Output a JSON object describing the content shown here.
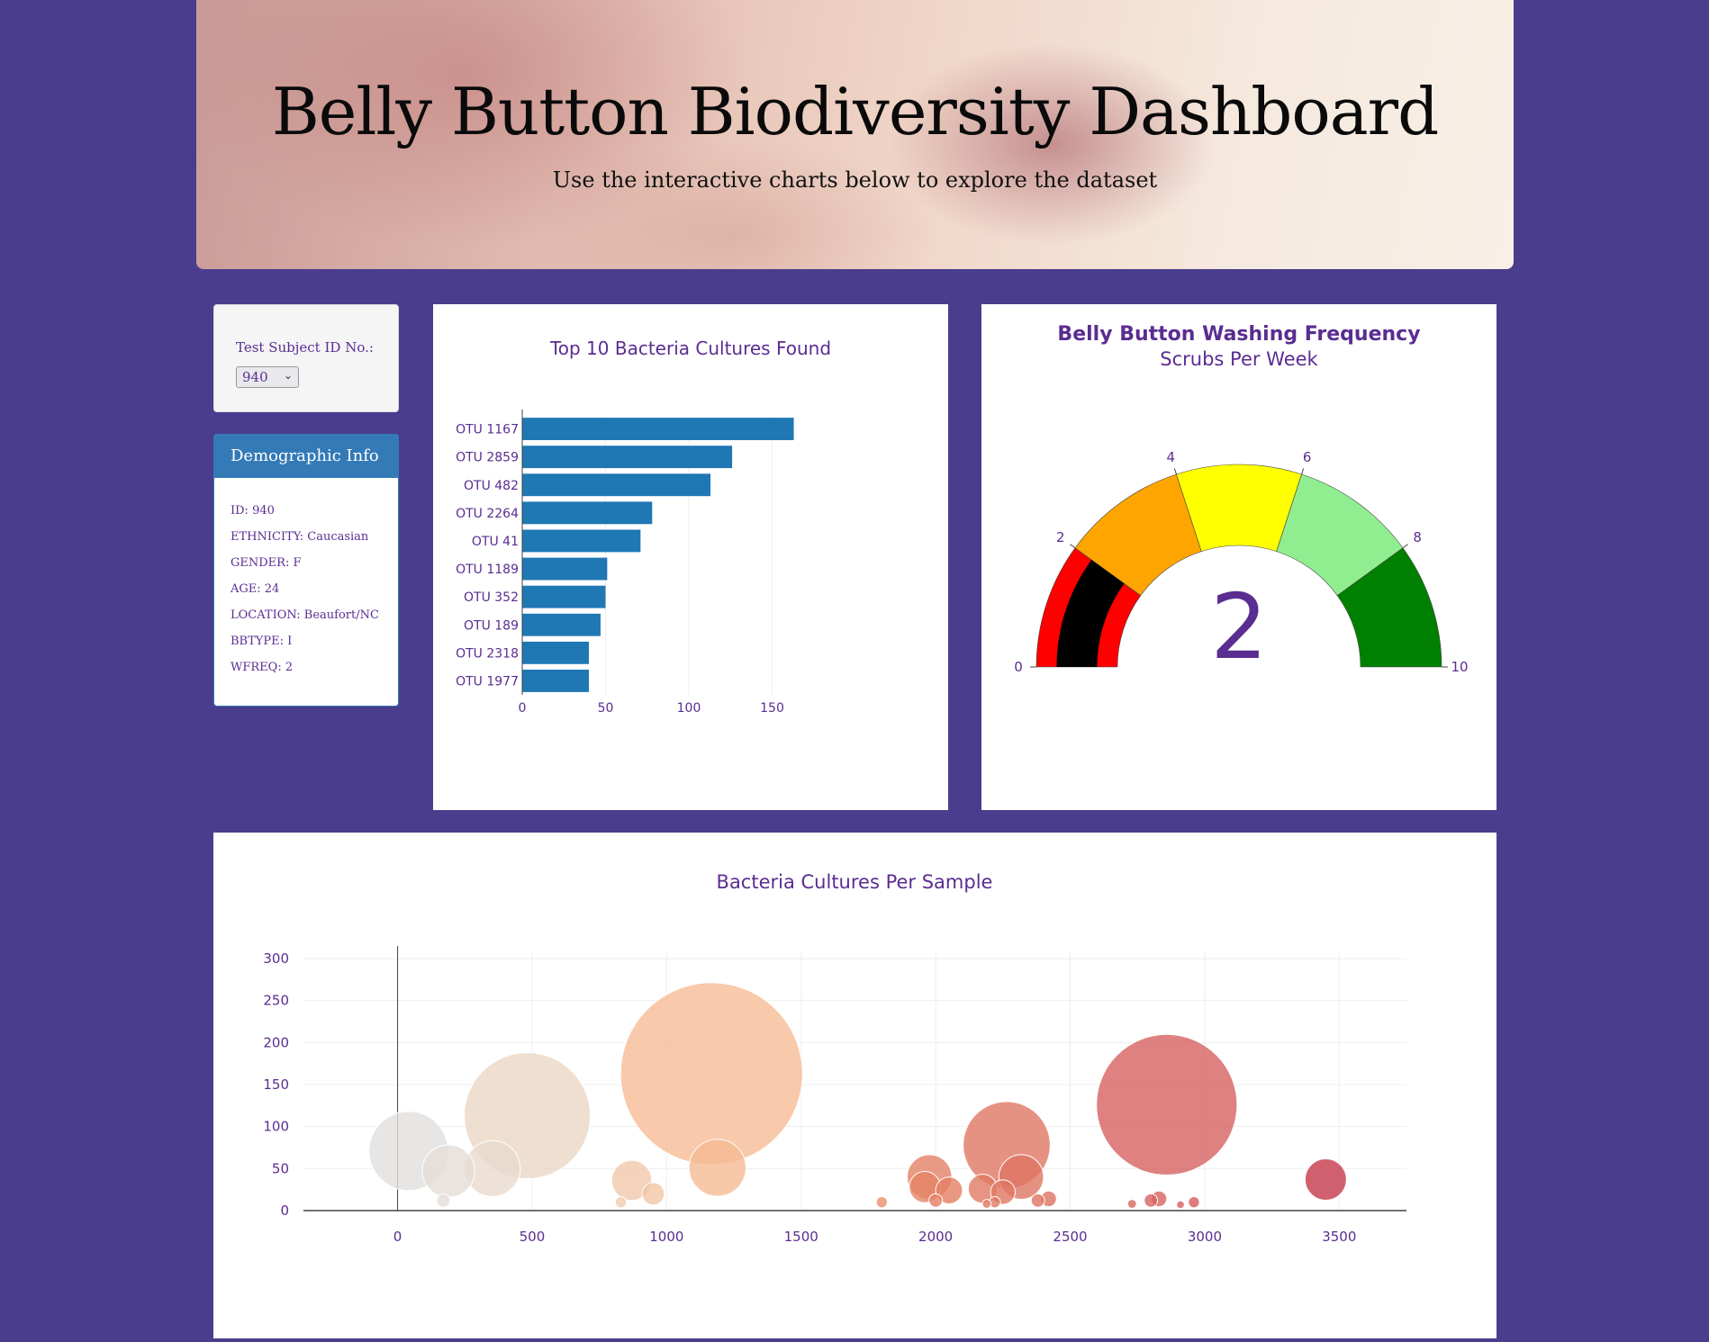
{
  "header": {
    "title": "Belly Button Biodiversity Dashboard",
    "subtitle": "Use the interactive charts below to explore the dataset"
  },
  "selector": {
    "label": "Test Subject ID No.:",
    "value": "940"
  },
  "demographics": {
    "heading": "Demographic Info",
    "rows": [
      "ID: 940",
      "ETHNICITY: Caucasian",
      "GENDER: F",
      "AGE: 24",
      "LOCATION: Beaufort/NC",
      "BBTYPE: I",
      "WFREQ: 2"
    ]
  },
  "colors": {
    "background": "#4a3d8e",
    "text_purple": "#5a2d91",
    "bar_blue": "#1f77b4"
  },
  "chart_data": [
    {
      "type": "bar",
      "orientation": "horizontal",
      "title": "Top 10 Bacteria Cultures Found",
      "categories": [
        "OTU 1167",
        "OTU 2859",
        "OTU 482",
        "OTU 2264",
        "OTU 41",
        "OTU 1189",
        "OTU 352",
        "OTU 189",
        "OTU 2318",
        "OTU 1977"
      ],
      "values": [
        163,
        126,
        113,
        78,
        71,
        51,
        50,
        47,
        40,
        40
      ],
      "xlim": [
        0,
        180
      ],
      "xticks": [
        0,
        50,
        100,
        150
      ],
      "grid": true
    },
    {
      "type": "gauge",
      "title": "Belly Button Washing Frequency",
      "subtitle": "Scrubs Per Week",
      "value": 2,
      "range": [
        0,
        10
      ],
      "ticks": [
        0,
        2,
        4,
        6,
        8,
        10
      ],
      "steps": [
        {
          "range": [
            0,
            2
          ],
          "color": "#ff0000"
        },
        {
          "range": [
            2,
            4
          ],
          "color": "#ffa500"
        },
        {
          "range": [
            4,
            6
          ],
          "color": "#ffff00"
        },
        {
          "range": [
            6,
            8
          ],
          "color": "#90ee90"
        },
        {
          "range": [
            8,
            10
          ],
          "color": "#008000"
        }
      ],
      "bar_color": "#000000"
    },
    {
      "type": "scatter",
      "variant": "bubble",
      "title": "Bacteria Cultures Per Sample",
      "xlim": [
        -350,
        3750
      ],
      "ylim": [
        0,
        300
      ],
      "xticks": [
        0,
        500,
        1000,
        1500,
        2000,
        2500,
        3000,
        3500
      ],
      "yticks": [
        0,
        50,
        100,
        150,
        200,
        250,
        300
      ],
      "grid": true,
      "points": [
        {
          "x": 41,
          "y": 71
        },
        {
          "x": 189,
          "y": 47
        },
        {
          "x": 352,
          "y": 50
        },
        {
          "x": 482,
          "y": 113
        },
        {
          "x": 1167,
          "y": 163
        },
        {
          "x": 1189,
          "y": 51
        },
        {
          "x": 870,
          "y": 36
        },
        {
          "x": 950,
          "y": 20
        },
        {
          "x": 1977,
          "y": 40
        },
        {
          "x": 1960,
          "y": 28
        },
        {
          "x": 2050,
          "y": 24
        },
        {
          "x": 2175,
          "y": 26
        },
        {
          "x": 2264,
          "y": 78
        },
        {
          "x": 2318,
          "y": 40
        },
        {
          "x": 2250,
          "y": 22
        },
        {
          "x": 2859,
          "y": 126
        },
        {
          "x": 3450,
          "y": 37
        },
        {
          "x": 2800,
          "y": 12
        },
        {
          "x": 2830,
          "y": 14
        },
        {
          "x": 2960,
          "y": 10
        },
        {
          "x": 1800,
          "y": 10
        },
        {
          "x": 2000,
          "y": 12
        },
        {
          "x": 2380,
          "y": 12
        },
        {
          "x": 2420,
          "y": 14
        },
        {
          "x": 170,
          "y": 12
        },
        {
          "x": 830,
          "y": 10
        },
        {
          "x": 2730,
          "y": 8
        },
        {
          "x": 2910,
          "y": 7
        },
        {
          "x": 2190,
          "y": 8
        },
        {
          "x": 2220,
          "y": 10
        }
      ]
    }
  ]
}
